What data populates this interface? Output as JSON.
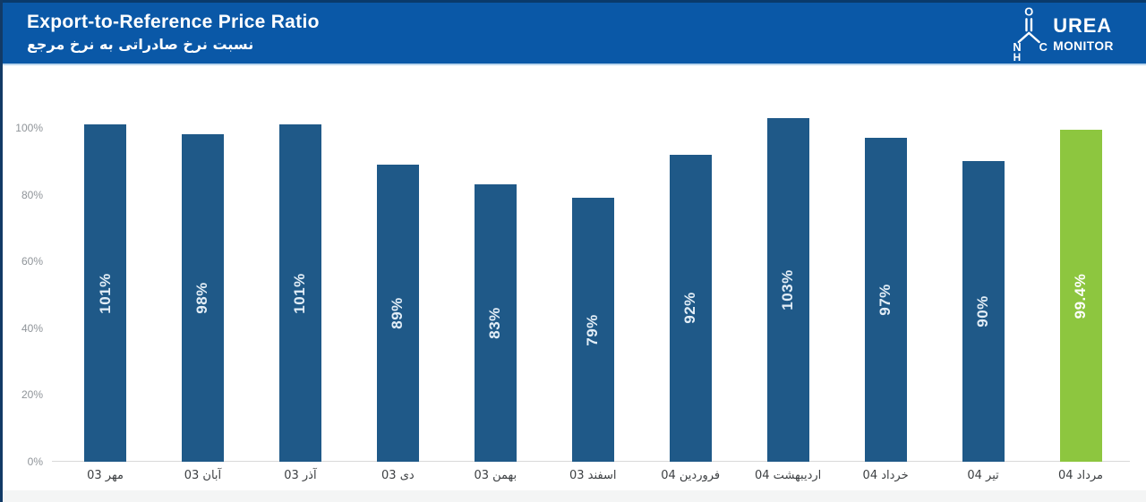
{
  "header": {
    "title": "Export-to-Reference Price Ratio",
    "subtitle_fa": "نسبت نرخ صادراتی به نرخ مرجع",
    "bg_color": "#0a58a7",
    "logo": {
      "brand_line1": "UREA",
      "brand_line2": "MONITOR",
      "atom_o": "O",
      "atom_n": "N",
      "atom_h": "H",
      "atom_c": "C"
    }
  },
  "chart_data": {
    "type": "bar",
    "title": "Export-to-Reference Price Ratio",
    "subtitle": "نسبت نرخ صادراتی به نرخ مرجع",
    "categories": [
      "مهر 03",
      "آبان 03",
      "آذر 03",
      "دی 03",
      "بهمن 03",
      "اسفند 03",
      "فروردین 04",
      "اردیبهشت 04",
      "خرداد 04",
      "تیر 04",
      "مرداد 04"
    ],
    "values": [
      101,
      98,
      101,
      89,
      83,
      79,
      92,
      103,
      97,
      90,
      99.4
    ],
    "bar_labels": [
      "101%",
      "98%",
      "101%",
      "89%",
      "83%",
      "79%",
      "92%",
      "103%",
      "97%",
      "90%",
      "99.4%"
    ],
    "highlight_index": 10,
    "y_ticks": [
      {
        "label": "0%",
        "value": 0
      },
      {
        "label": "20%",
        "value": 20
      },
      {
        "label": "40%",
        "value": 40
      },
      {
        "label": "60%",
        "value": 60
      },
      {
        "label": "80%",
        "value": 80
      },
      {
        "label": "100%",
        "value": 100
      }
    ],
    "ylim": [
      0,
      105
    ],
    "xlabel": "",
    "ylabel": "",
    "grid": "baseline-only",
    "legend": "none",
    "colors": {
      "bar": "#1f5988",
      "highlight": "#8dc63f",
      "bar_label": "#e3eef7",
      "highlight_label": "#ffffff",
      "axis_label": "#8f9499",
      "category_label": "#3d4043",
      "baseline": "#d9d9d9"
    }
  }
}
